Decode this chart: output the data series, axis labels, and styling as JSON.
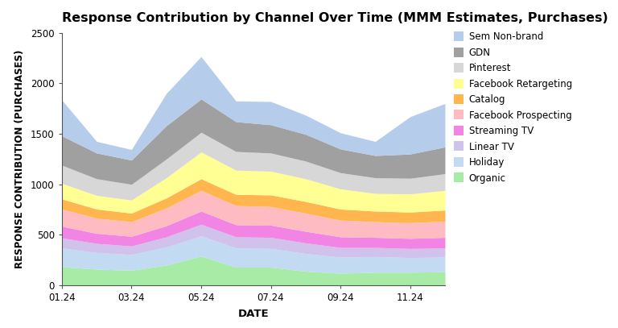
{
  "title": "Response Contribution by Channel Over Time (MMM Estimates, Purchases)",
  "xlabel": "DATE",
  "ylabel": "RESPONSE CONTRIBUTION (PURCHASES)",
  "x_labels": [
    "01.24",
    "03.24",
    "05.24",
    "07.24",
    "09.24",
    "11.24"
  ],
  "ylim": [
    0,
    2500
  ],
  "yticks": [
    0,
    500,
    1000,
    1500,
    2000,
    2500
  ],
  "channels": [
    "Organic",
    "Holiday",
    "Linear TV",
    "Streaming TV",
    "Facebook Prospecting",
    "Catalog",
    "Facebook Retargeting",
    "Pinterest",
    "GDN",
    "Sem Non-brand"
  ],
  "colors": [
    "#98e898",
    "#b8d4f0",
    "#c8b8e8",
    "#f070e0",
    "#ffb0b8",
    "#ffaa30",
    "#ffff80",
    "#d0d0d0",
    "#909090",
    "#aac4e8"
  ],
  "data": {
    "Organic": [
      185,
      160,
      150,
      200,
      290,
      180,
      180,
      140,
      120,
      130,
      130,
      135
    ],
    "Holiday": [
      185,
      165,
      155,
      180,
      200,
      190,
      185,
      175,
      160,
      155,
      145,
      145
    ],
    "Linear TV": [
      100,
      90,
      85,
      100,
      115,
      110,
      110,
      105,
      95,
      90,
      90,
      90
    ],
    "Streaming TV": [
      115,
      100,
      95,
      110,
      130,
      120,
      120,
      115,
      105,
      100,
      100,
      105
    ],
    "Facebook Prospecting": [
      170,
      150,
      145,
      175,
      205,
      190,
      185,
      180,
      165,
      155,
      155,
      160
    ],
    "Catalog": [
      100,
      90,
      85,
      100,
      115,
      110,
      115,
      115,
      110,
      105,
      105,
      110
    ],
    "Facebook Retargeting": [
      155,
      135,
      130,
      200,
      265,
      240,
      235,
      225,
      200,
      175,
      180,
      195
    ],
    "Pinterest": [
      180,
      165,
      155,
      185,
      195,
      185,
      180,
      175,
      160,
      155,
      155,
      165
    ],
    "GDN": [
      290,
      255,
      240,
      330,
      330,
      295,
      280,
      265,
      235,
      220,
      240,
      265
    ],
    "Sem Non-brand": [
      355,
      115,
      105,
      320,
      420,
      205,
      230,
      190,
      160,
      140,
      370,
      430
    ]
  },
  "n_points": 12,
  "x_tick_positions": [
    0,
    2,
    4,
    6,
    8,
    10
  ],
  "background_color": "#ffffff",
  "title_fontsize": 11.5,
  "axis_label_fontsize": 8.5,
  "tick_fontsize": 8.5,
  "legend_fontsize": 8.5
}
